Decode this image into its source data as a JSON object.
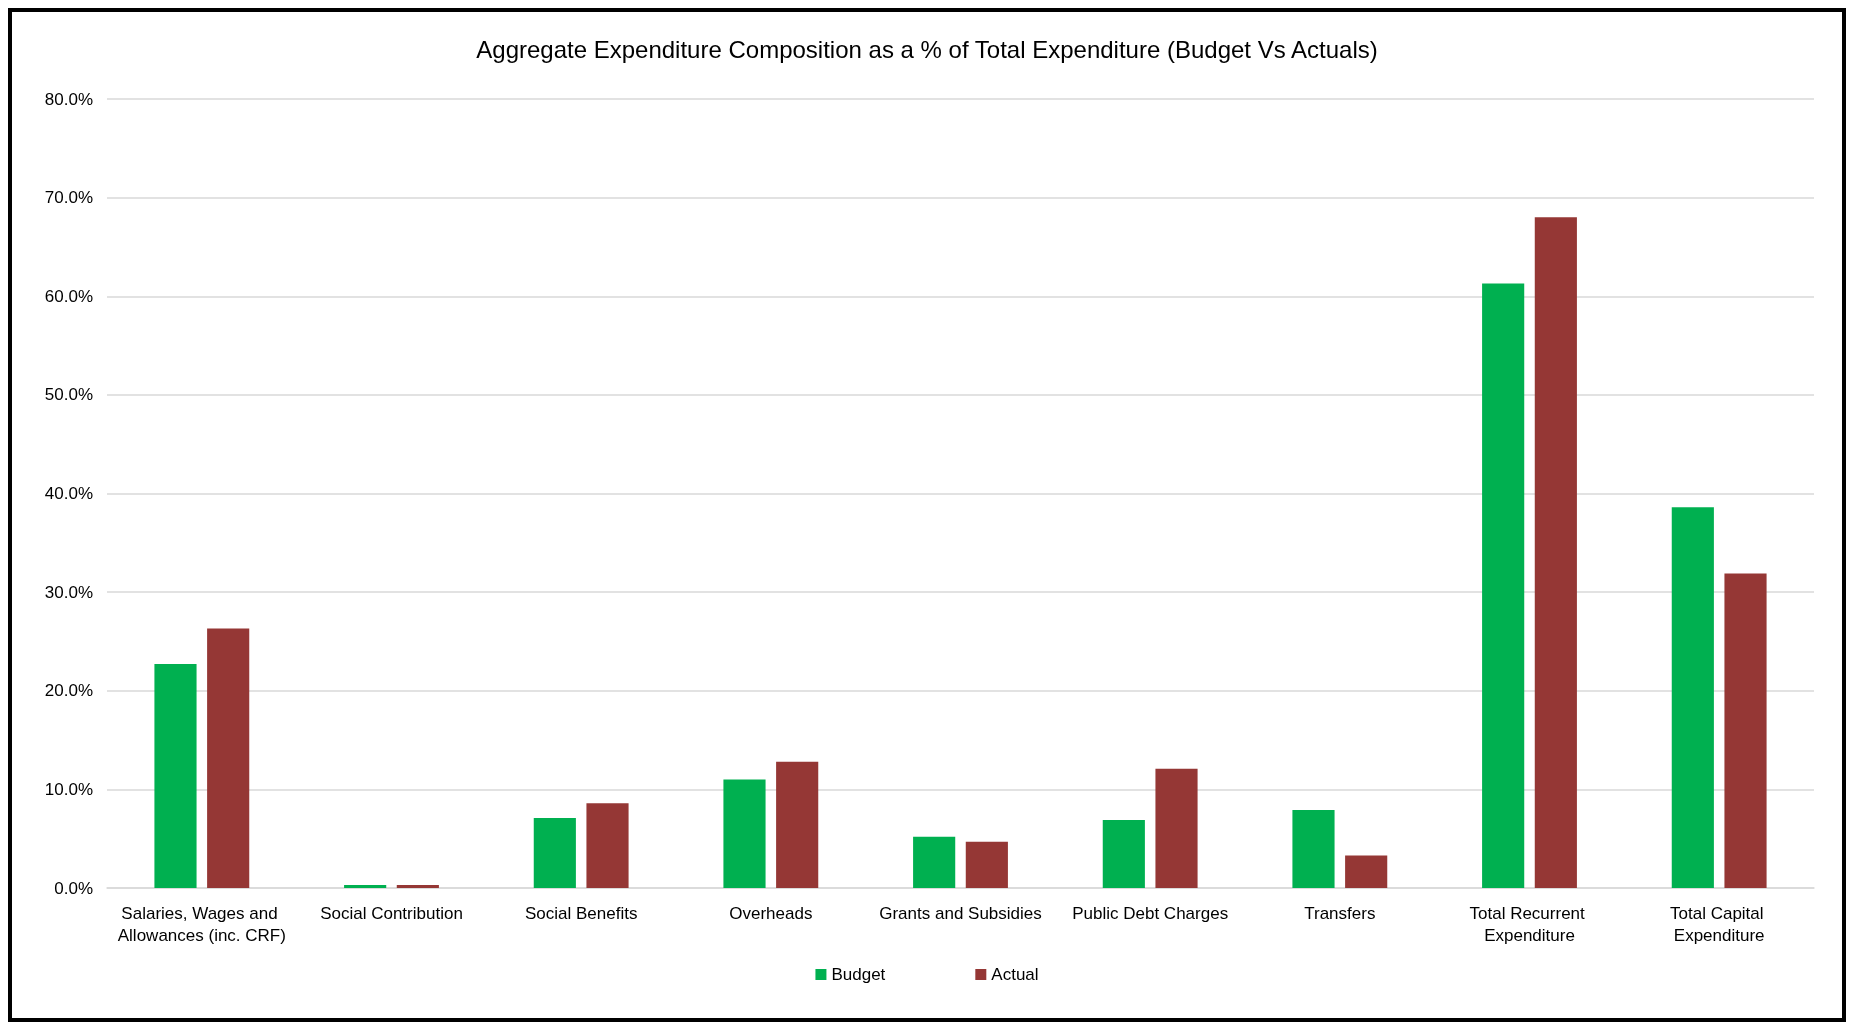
{
  "chart_data": {
    "type": "bar",
    "title": "Aggregate Expenditure Composition as a % of Total Expenditure (Budget Vs Actuals)",
    "categories": [
      "Salaries, Wages and Allowances (inc. CRF)",
      "Social Contribution",
      "Social Benefits",
      "Overheads",
      "Grants and Subsidies",
      "Public Debt Charges",
      "Transfers",
      "Total Recurrent Expenditure",
      "Total Capital Expenditure"
    ],
    "series": [
      {
        "name": "Budget",
        "color": "#00b050",
        "values": [
          22.7,
          0.3,
          7.1,
          11.0,
          5.2,
          6.9,
          7.9,
          61.3,
          38.6
        ]
      },
      {
        "name": "Actual",
        "color": "#953735",
        "values": [
          26.3,
          0.3,
          8.6,
          12.8,
          4.7,
          12.1,
          3.3,
          68.0,
          31.9
        ]
      }
    ],
    "ylim": [
      0,
      80
    ],
    "yticks": [
      {
        "value": 0,
        "label": "0.0%"
      },
      {
        "value": 10,
        "label": "10.0%"
      },
      {
        "value": 20,
        "label": "20.0%"
      },
      {
        "value": 30,
        "label": "30.0%"
      },
      {
        "value": 40,
        "label": "40.0%"
      },
      {
        "value": 50,
        "label": "50.0%"
      },
      {
        "value": 60,
        "label": "60.0%"
      },
      {
        "value": 70,
        "label": "70.0%"
      },
      {
        "value": 80,
        "label": "80.0%"
      }
    ],
    "grid": "y",
    "legend": "bottom"
  }
}
